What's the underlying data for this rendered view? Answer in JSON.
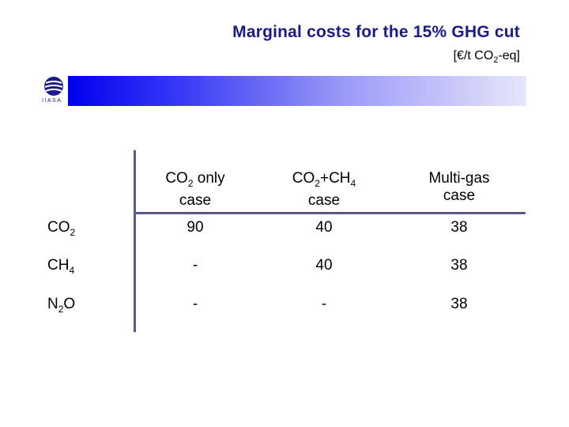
{
  "header": {
    "title": "Marginal costs for the 15% GHG cut",
    "unit_prefix": "[€/t CO",
    "unit_sub": "2",
    "unit_suffix": "-eq]"
  },
  "logo": {
    "text": "IIASA",
    "icon": "iiasa-logo-icon"
  },
  "table": {
    "columns": [
      {
        "line1_main": "CO",
        "line1_sub": "2",
        "line1_rest": " only",
        "line1_sub2": "",
        "line2": "case"
      },
      {
        "line1_main": "CO",
        "line1_sub": "2",
        "line1_rest": "+CH",
        "line1_sub2": "4",
        "line2": "case"
      },
      {
        "line1_main": "Multi-gas",
        "line1_sub": "",
        "line1_rest": "",
        "line1_sub2": "",
        "line2": "case"
      }
    ],
    "rows": [
      {
        "label_main": "CO",
        "label_sub": "2",
        "label_rest": "",
        "values": [
          "90",
          "40",
          "38"
        ]
      },
      {
        "label_main": "CH",
        "label_sub": "4",
        "label_rest": "",
        "values": [
          "-",
          "40",
          "38"
        ]
      },
      {
        "label_main": "N",
        "label_sub": "2",
        "label_rest": "O",
        "values": [
          "-",
          "-",
          "38"
        ]
      }
    ]
  },
  "colors": {
    "title": "#1a1a8c",
    "banner_start": "#0000ee",
    "rule": "#5a5a8a"
  }
}
